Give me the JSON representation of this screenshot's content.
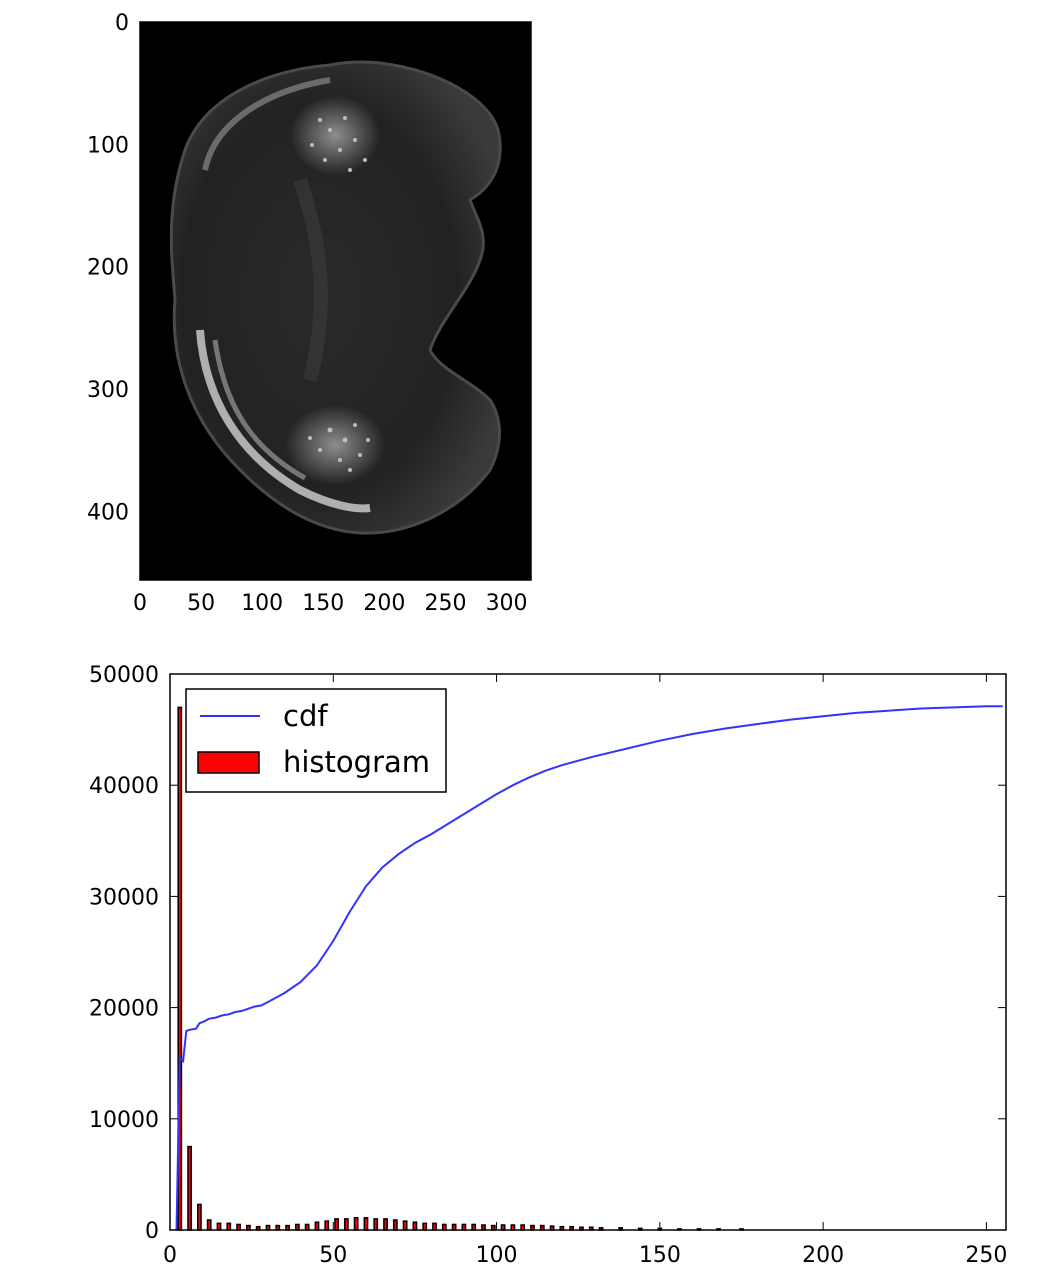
{
  "chart_data": [
    {
      "type": "image",
      "image_extent": {
        "x": [
          0,
          320
        ],
        "y": [
          0,
          456
        ]
      },
      "y_axis_inverted": true,
      "xticks": [
        0,
        50,
        100,
        150,
        200,
        250,
        300
      ],
      "yticks": [
        0,
        100,
        200,
        300,
        400
      ],
      "colormap": "gray",
      "background": "#000000",
      "title": "",
      "xlabel": "",
      "ylabel": ""
    },
    {
      "type": "line+bar",
      "title": "",
      "xlabel": "",
      "ylabel": "",
      "xlim": [
        0,
        256
      ],
      "ylim": [
        0,
        50000
      ],
      "xticks": [
        0,
        50,
        100,
        150,
        200,
        250
      ],
      "yticks": [
        0,
        10000,
        20000,
        30000,
        40000,
        50000
      ],
      "legend_position": "upper left",
      "series": [
        {
          "name": "cdf",
          "type": "line",
          "color": "#3333ff",
          "x": [
            2,
            3,
            4,
            5,
            6,
            8,
            9,
            10,
            12,
            14,
            16,
            18,
            20,
            22,
            24,
            26,
            28,
            30,
            35,
            40,
            45,
            50,
            55,
            60,
            65,
            70,
            75,
            80,
            85,
            90,
            95,
            100,
            105,
            110,
            115,
            120,
            125,
            130,
            140,
            150,
            160,
            170,
            180,
            190,
            200,
            210,
            220,
            230,
            240,
            250,
            255
          ],
          "y": [
            0,
            15500,
            15200,
            17900,
            18000,
            18100,
            18600,
            18700,
            19000,
            19100,
            19300,
            19400,
            19600,
            19700,
            19900,
            20100,
            20200,
            20500,
            21300,
            22300,
            23800,
            26000,
            28600,
            30900,
            32600,
            33800,
            34800,
            35600,
            36500,
            37400,
            38300,
            39200,
            40000,
            40700,
            41300,
            41800,
            42200,
            42600,
            43300,
            44000,
            44600,
            45100,
            45500,
            45900,
            46200,
            46500,
            46700,
            46900,
            47000,
            47100,
            47100
          ]
        },
        {
          "name": "histogram",
          "type": "bar",
          "color": "#ff0000",
          "edgecolor": "#000000",
          "bar_width": 1,
          "x": [
            3,
            6,
            9,
            12,
            15,
            18,
            21,
            24,
            27,
            30,
            33,
            36,
            39,
            42,
            45,
            48,
            51,
            54,
            57,
            60,
            63,
            66,
            69,
            72,
            75,
            78,
            81,
            84,
            87,
            90,
            93,
            96,
            99,
            102,
            105,
            108,
            111,
            114,
            117,
            120,
            123,
            126,
            129,
            132,
            138,
            144,
            150,
            156,
            162,
            168,
            175
          ],
          "values": [
            47000,
            7500,
            2300,
            900,
            600,
            600,
            500,
            400,
            300,
            400,
            400,
            400,
            500,
            500,
            700,
            800,
            1000,
            1000,
            1100,
            1100,
            1000,
            1000,
            900,
            800,
            700,
            600,
            600,
            500,
            500,
            500,
            500,
            450,
            400,
            450,
            450,
            450,
            400,
            400,
            350,
            300,
            300,
            250,
            250,
            200,
            200,
            150,
            150,
            100,
            100,
            100,
            100
          ]
        }
      ]
    }
  ]
}
